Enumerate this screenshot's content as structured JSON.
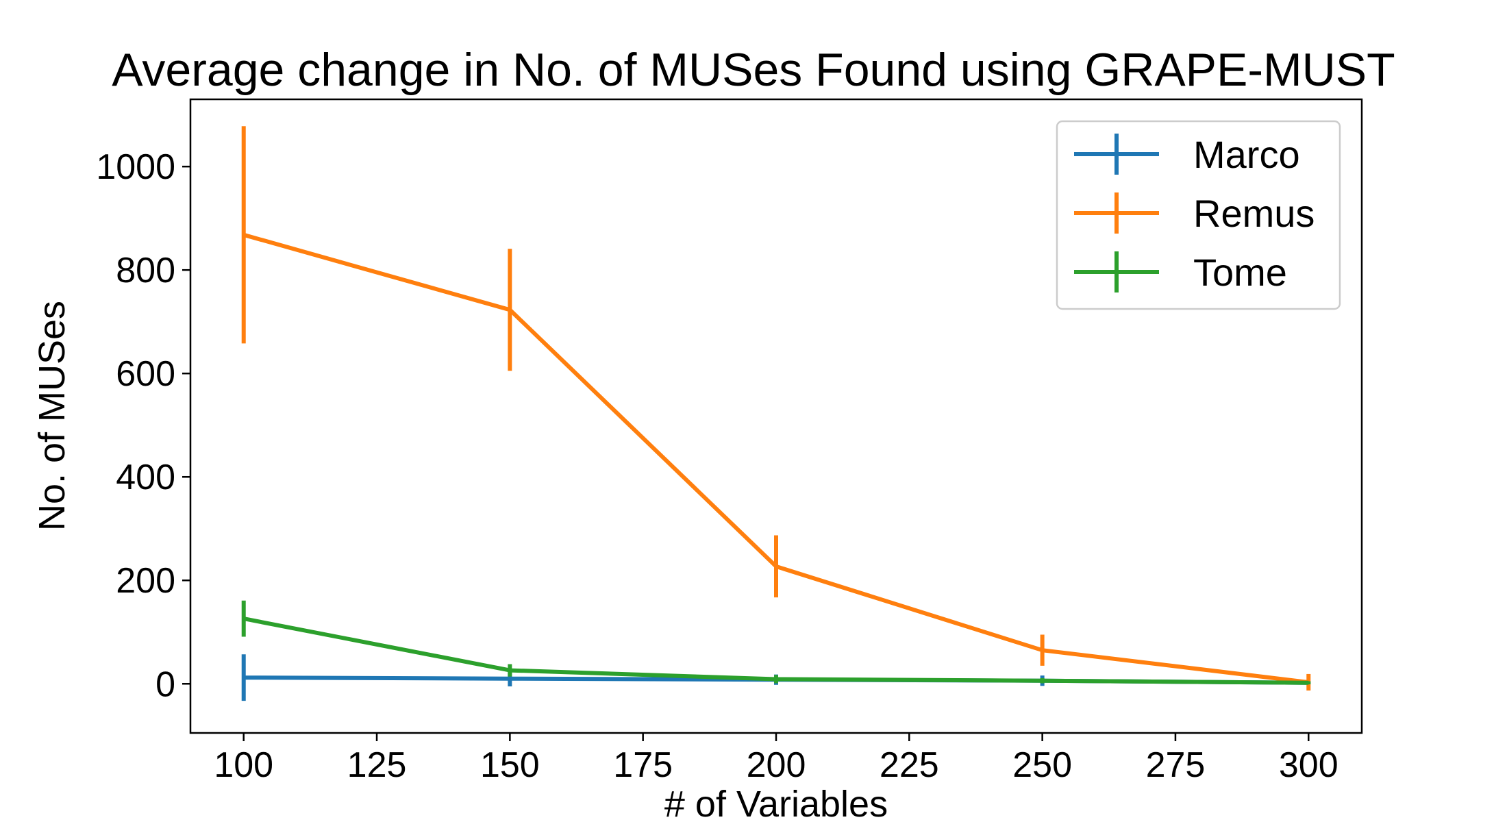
{
  "chart_data": {
    "type": "line",
    "title": "Average change in No. of MUSes Found using GRAPE-MUST",
    "xlabel": "# of Variables",
    "ylabel": "No. of MUSes",
    "xlim": [
      90,
      310
    ],
    "ylim": [
      -95,
      1130
    ],
    "x_ticks": [
      100,
      125,
      150,
      175,
      200,
      225,
      250,
      275,
      300
    ],
    "y_ticks": [
      0,
      200,
      400,
      600,
      800,
      1000
    ],
    "legend_position": "top-right",
    "grid": false,
    "series": [
      {
        "name": "Marco",
        "color": "#1f77b4",
        "x": [
          100,
          150,
          200,
          250,
          300
        ],
        "y": [
          12,
          10,
          8,
          6,
          2
        ],
        "err": [
          45,
          15,
          10,
          10,
          3
        ]
      },
      {
        "name": "Remus",
        "color": "#ff7f0e",
        "x": [
          100,
          150,
          200,
          250,
          300
        ],
        "y": [
          868,
          723,
          227,
          65,
          3
        ],
        "err": [
          210,
          118,
          60,
          30,
          16
        ]
      },
      {
        "name": "Tome",
        "color": "#2ca02c",
        "x": [
          100,
          150,
          200,
          250,
          300
        ],
        "y": [
          126,
          26,
          9,
          6,
          2
        ],
        "err": [
          35,
          12,
          8,
          5,
          3
        ]
      }
    ]
  }
}
